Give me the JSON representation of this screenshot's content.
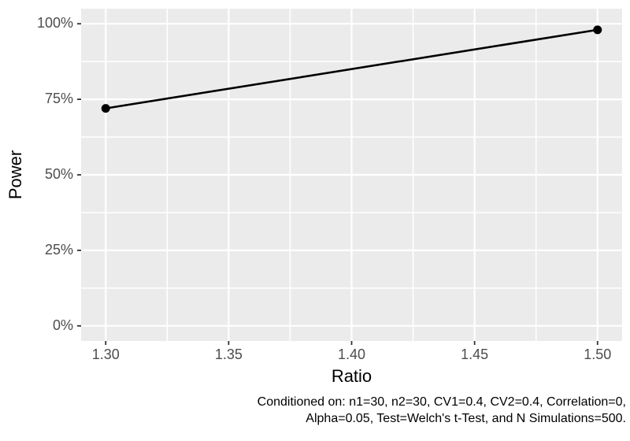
{
  "chart_data": {
    "type": "line",
    "title": "",
    "xlabel": "Ratio",
    "ylabel": "Power",
    "series": [
      {
        "name": "Power",
        "x": [
          1.3,
          1.5
        ],
        "y": [
          0.72,
          0.98
        ]
      }
    ],
    "x_ticks": {
      "values": [
        1.3,
        1.35,
        1.4,
        1.45,
        1.5
      ],
      "labels": [
        "1.30",
        "1.35",
        "1.40",
        "1.45",
        "1.50"
      ]
    },
    "y_ticks": {
      "values": [
        0,
        0.25,
        0.5,
        0.75,
        1.0
      ],
      "labels": [
        "0%",
        "25%",
        "50%",
        "75%",
        "100%"
      ]
    },
    "x_minor": [
      1.325,
      1.375,
      1.425,
      1.475
    ],
    "y_minor": [
      0.125,
      0.375,
      0.625,
      0.875
    ],
    "xlim": [
      1.29,
      1.51
    ],
    "ylim": [
      -0.05,
      1.05
    ],
    "grid": true,
    "legend": "none",
    "caption_lines": [
      "Conditioned on: n1=30, n2=30, CV1=0.4, CV2=0.4, Correlation=0,",
      "Alpha=0.05, Test=Welch's t-Test, and N Simulations=500."
    ],
    "colors": {
      "outer_background": "#FFFFFF",
      "panel_background": "#EBEBEB",
      "gridline": "#FFFFFF",
      "line": "#000000",
      "point": "#000000",
      "axis_text": "#4D4D4D",
      "axis_title": "#000000",
      "caption": "#000000",
      "tick_mark": "#333333"
    }
  }
}
